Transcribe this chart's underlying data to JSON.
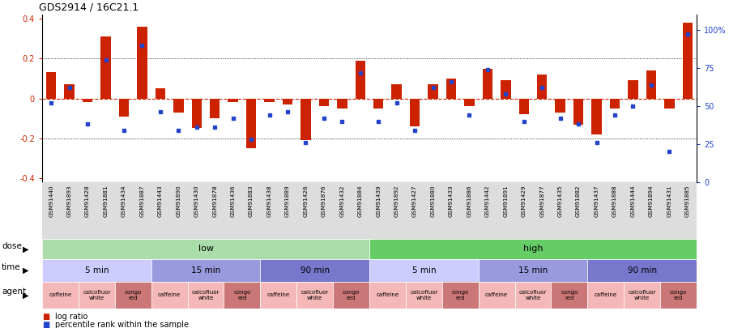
{
  "title": "GDS2914 / 16C21.1",
  "samples": [
    "GSM91440",
    "GSM91893",
    "GSM91428",
    "GSM91881",
    "GSM91434",
    "GSM91887",
    "GSM91443",
    "GSM91890",
    "GSM91430",
    "GSM91878",
    "GSM91436",
    "GSM91883",
    "GSM91438",
    "GSM91889",
    "GSM91426",
    "GSM91876",
    "GSM91432",
    "GSM91884",
    "GSM91439",
    "GSM91892",
    "GSM91427",
    "GSM91880",
    "GSM91433",
    "GSM91886",
    "GSM91442",
    "GSM91891",
    "GSM91429",
    "GSM91877",
    "GSM91435",
    "GSM91882",
    "GSM91437",
    "GSM91888",
    "GSM91444",
    "GSM91894",
    "GSM91431",
    "GSM91885"
  ],
  "log_ratio": [
    0.13,
    0.07,
    -0.02,
    0.31,
    -0.09,
    0.36,
    0.05,
    -0.07,
    -0.15,
    -0.1,
    -0.02,
    -0.25,
    -0.02,
    -0.03,
    -0.21,
    -0.04,
    -0.05,
    0.19,
    -0.05,
    0.07,
    -0.14,
    0.07,
    0.1,
    -0.04,
    0.15,
    0.09,
    -0.08,
    0.12,
    -0.07,
    -0.13,
    -0.18,
    -0.05,
    0.09,
    0.14,
    -0.05,
    0.38
  ],
  "percentile": [
    52,
    62,
    38,
    80,
    34,
    90,
    46,
    34,
    36,
    36,
    42,
    28,
    44,
    46,
    26,
    42,
    40,
    72,
    40,
    52,
    34,
    62,
    66,
    44,
    74,
    58,
    40,
    62,
    42,
    38,
    26,
    44,
    50,
    64,
    20,
    97
  ],
  "dose_groups": [
    {
      "label": "low",
      "start": 0,
      "end": 18,
      "color": "#aaddaa"
    },
    {
      "label": "high",
      "start": 18,
      "end": 36,
      "color": "#66cc66"
    }
  ],
  "time_groups": [
    {
      "label": "5 min",
      "start": 0,
      "end": 6,
      "color": "#ccccff"
    },
    {
      "label": "15 min",
      "start": 6,
      "end": 12,
      "color": "#9999dd"
    },
    {
      "label": "90 min",
      "start": 12,
      "end": 18,
      "color": "#7777cc"
    },
    {
      "label": "5 min",
      "start": 18,
      "end": 24,
      "color": "#ccccff"
    },
    {
      "label": "15 min",
      "start": 24,
      "end": 30,
      "color": "#9999dd"
    },
    {
      "label": "90 min",
      "start": 30,
      "end": 36,
      "color": "#7777cc"
    }
  ],
  "agent_groups": [
    {
      "label": "caffeine",
      "start": 0,
      "end": 2,
      "color": "#f5b8b8"
    },
    {
      "label": "calcofluor\nwhite",
      "start": 2,
      "end": 4,
      "color": "#f5b8b8"
    },
    {
      "label": "congo\nred",
      "start": 4,
      "end": 6,
      "color": "#cc7777"
    },
    {
      "label": "caffeine",
      "start": 6,
      "end": 8,
      "color": "#f5b8b8"
    },
    {
      "label": "calcofluor\nwhite",
      "start": 8,
      "end": 10,
      "color": "#f5b8b8"
    },
    {
      "label": "congo\nred",
      "start": 10,
      "end": 12,
      "color": "#cc7777"
    },
    {
      "label": "caffeine",
      "start": 12,
      "end": 14,
      "color": "#f5b8b8"
    },
    {
      "label": "calcofluor\nwhite",
      "start": 14,
      "end": 16,
      "color": "#f5b8b8"
    },
    {
      "label": "congo\nred",
      "start": 16,
      "end": 18,
      "color": "#cc7777"
    },
    {
      "label": "caffeine",
      "start": 18,
      "end": 20,
      "color": "#f5b8b8"
    },
    {
      "label": "calcofluor\nwhite",
      "start": 20,
      "end": 22,
      "color": "#f5b8b8"
    },
    {
      "label": "congo\nred",
      "start": 22,
      "end": 24,
      "color": "#cc7777"
    },
    {
      "label": "caffeine",
      "start": 24,
      "end": 26,
      "color": "#f5b8b8"
    },
    {
      "label": "calcofluor\nwhite",
      "start": 26,
      "end": 28,
      "color": "#f5b8b8"
    },
    {
      "label": "congo\nred",
      "start": 28,
      "end": 30,
      "color": "#cc7777"
    },
    {
      "label": "caffeine",
      "start": 30,
      "end": 32,
      "color": "#f5b8b8"
    },
    {
      "label": "calcofluor\nwhite",
      "start": 32,
      "end": 34,
      "color": "#f5b8b8"
    },
    {
      "label": "congo\nred",
      "start": 34,
      "end": 36,
      "color": "#cc7777"
    }
  ],
  "bar_color": "#cc2200",
  "dot_color": "#2244cc",
  "ylim": [
    -0.42,
    0.42
  ],
  "yticks": [
    -0.4,
    -0.2,
    0.0,
    0.2,
    0.4
  ],
  "pct_ylim": [
    0,
    110
  ],
  "pct_yticks": [
    0,
    25,
    50,
    75,
    100
  ],
  "pct_yticklabels": [
    "0",
    "25",
    "50",
    "75",
    "100%"
  ]
}
